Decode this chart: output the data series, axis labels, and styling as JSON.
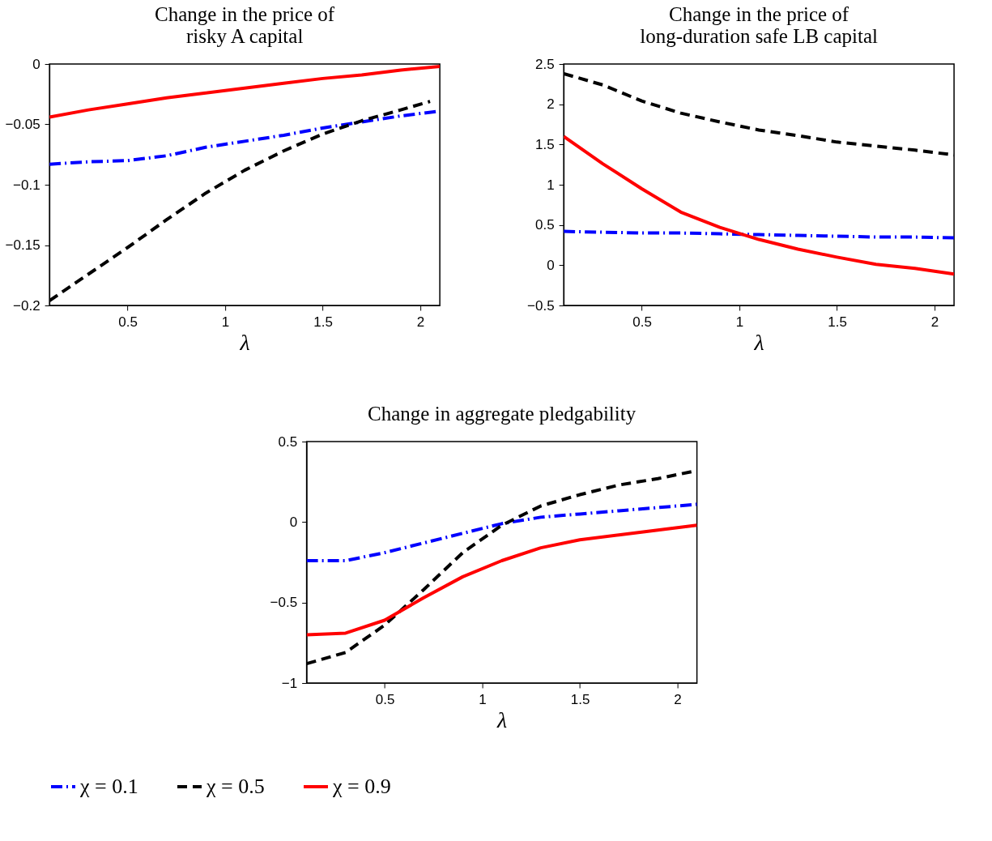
{
  "chart_data": [
    {
      "type": "line",
      "title": [
        "Change in the price of",
        "risky A capital"
      ],
      "xlabel": "λ",
      "x": [
        0.1,
        0.3,
        0.5,
        0.7,
        0.9,
        1.1,
        1.3,
        1.5,
        1.7,
        1.9,
        2.1
      ],
      "xlim": [
        0.1,
        2.1
      ],
      "xticks": [
        0.5,
        1,
        1.5,
        2
      ],
      "ylim": [
        -0.2,
        0
      ],
      "yticks": [
        {
          "value": -0.2,
          "label": "−0.2"
        },
        {
          "value": -0.15,
          "label": "−0.15"
        },
        {
          "value": -0.1,
          "label": "−0.1"
        },
        {
          "value": -0.05,
          "label": "−0.05"
        },
        0
      ],
      "grid": false,
      "legend": "bottom",
      "series": [
        {
          "name": "χ = 0.1",
          "color": "#0000ff",
          "line_style": "dotted",
          "values": [
            -0.083,
            -0.081,
            -0.08,
            -0.076,
            -0.069,
            -0.064,
            -0.059,
            -0.053,
            -0.048,
            -0.043,
            -0.039
          ]
        },
        {
          "name": "χ = 0.5",
          "color": "#000000",
          "line_style": "dashed",
          "x": [
            0.1,
            0.3,
            0.5,
            0.7,
            0.9,
            1.1,
            1.3,
            1.5,
            1.7,
            1.9,
            2.05
          ],
          "values": [
            -0.196,
            -0.174,
            -0.152,
            -0.129,
            -0.107,
            -0.088,
            -0.072,
            -0.058,
            -0.047,
            -0.038,
            -0.031
          ]
        },
        {
          "name": "χ = 0.9",
          "color": "#ff0000",
          "line_style": "solid",
          "values": [
            -0.044,
            -0.038,
            -0.033,
            -0.028,
            -0.024,
            -0.02,
            -0.016,
            -0.012,
            -0.009,
            -0.005,
            -0.002
          ]
        }
      ]
    },
    {
      "type": "line",
      "title": [
        "Change in the price of",
        "long-duration safe LB capital"
      ],
      "xlabel": "λ",
      "x": [
        0.1,
        0.3,
        0.5,
        0.7,
        0.9,
        1.1,
        1.3,
        1.5,
        1.7,
        1.9,
        2.1
      ],
      "xlim": [
        0.1,
        2.1
      ],
      "xticks": [
        0.5,
        1,
        1.5,
        2
      ],
      "ylim": [
        -0.5,
        2.5
      ],
      "yticks": [
        {
          "value": -0.5,
          "label": "−0.5"
        },
        0,
        0.5,
        1,
        1.5,
        2,
        2.5
      ],
      "grid": false,
      "legend": "bottom",
      "series": [
        {
          "name": "χ = 0.1",
          "color": "#0000ff",
          "line_style": "dotted",
          "values": [
            0.42,
            0.41,
            0.4,
            0.4,
            0.39,
            0.38,
            0.37,
            0.36,
            0.35,
            0.35,
            0.34
          ]
        },
        {
          "name": "χ = 0.5",
          "color": "#000000",
          "line_style": "dashed",
          "values": [
            2.38,
            2.24,
            2.04,
            1.89,
            1.78,
            1.68,
            1.61,
            1.53,
            1.48,
            1.43,
            1.37
          ]
        },
        {
          "name": "χ = 0.9",
          "color": "#ff0000",
          "line_style": "solid",
          "values": [
            1.6,
            1.26,
            0.95,
            0.66,
            0.47,
            0.32,
            0.2,
            0.1,
            0.01,
            -0.04,
            -0.11
          ]
        }
      ]
    },
    {
      "type": "line",
      "title": "Change in aggregate pledgability",
      "xlabel": "λ",
      "x": [
        0.1,
        0.3,
        0.5,
        0.7,
        0.9,
        1.1,
        1.3,
        1.5,
        1.7,
        1.9,
        2.1
      ],
      "xlim": [
        0.1,
        2.1
      ],
      "xticks": [
        0.5,
        1,
        1.5,
        2
      ],
      "ylim": [
        -1,
        0.5
      ],
      "yticks": [
        {
          "value": -1,
          "label": "−1"
        },
        {
          "value": -0.5,
          "label": "−0.5"
        },
        0,
        0.5
      ],
      "grid": false,
      "legend": "bottom",
      "series": [
        {
          "name": "χ = 0.1",
          "color": "#0000ff",
          "line_style": "dotted",
          "values": [
            -0.24,
            -0.24,
            -0.19,
            -0.13,
            -0.07,
            -0.01,
            0.03,
            0.05,
            0.07,
            0.09,
            0.11
          ]
        },
        {
          "name": "χ = 0.5",
          "color": "#000000",
          "line_style": "dashed",
          "values": [
            -0.88,
            -0.81,
            -0.64,
            -0.42,
            -0.19,
            -0.02,
            0.1,
            0.17,
            0.23,
            0.27,
            0.32
          ]
        },
        {
          "name": "χ = 0.9",
          "color": "#ff0000",
          "line_style": "solid",
          "values": [
            -0.7,
            -0.69,
            -0.61,
            -0.47,
            -0.34,
            -0.24,
            -0.16,
            -0.11,
            -0.08,
            -0.05,
            -0.02
          ]
        }
      ]
    }
  ]
}
